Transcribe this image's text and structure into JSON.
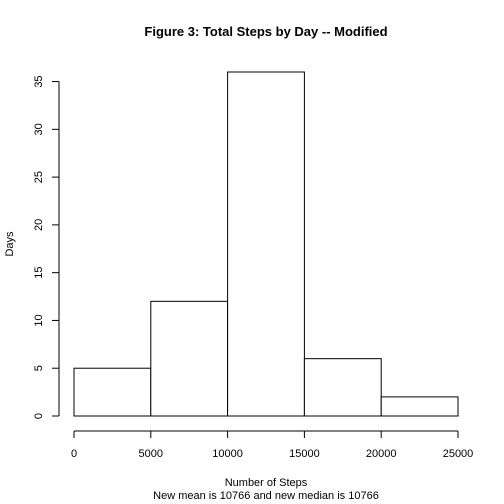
{
  "chart_data": {
    "type": "bar",
    "title": "Figure 3: Total Steps by Day -- Modified",
    "xlabel": "Number of Steps",
    "ylabel": "Days",
    "subtitle": "New mean is 10766 and new median is 10766",
    "bins": [
      {
        "x0": 0,
        "x1": 5000,
        "value": 5
      },
      {
        "x0": 5000,
        "x1": 10000,
        "value": 12
      },
      {
        "x0": 10000,
        "x1": 15000,
        "value": 36
      },
      {
        "x0": 15000,
        "x1": 20000,
        "value": 6
      },
      {
        "x0": 20000,
        "x1": 25000,
        "value": 2
      }
    ],
    "xlim": [
      0,
      25000
    ],
    "ylim": [
      0,
      35
    ],
    "xticks": [
      0,
      5000,
      10000,
      15000,
      20000,
      25000
    ],
    "yticks": [
      0,
      5,
      10,
      15,
      20,
      25,
      30,
      35
    ],
    "grid": false,
    "bar_fill": "#ffffff",
    "bar_stroke": "#000000"
  }
}
